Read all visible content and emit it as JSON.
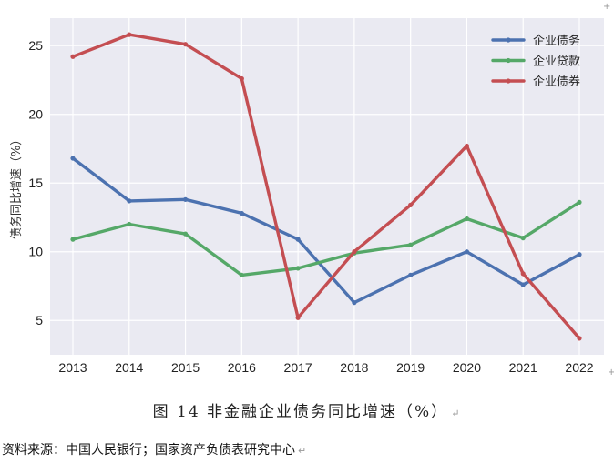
{
  "chart_data": {
    "type": "line",
    "categories": [
      "2013",
      "2014",
      "2015",
      "2016",
      "2017",
      "2018",
      "2019",
      "2020",
      "2021",
      "2022"
    ],
    "series": [
      {
        "name": "企业债务",
        "color": "#4c72b0",
        "values": [
          16.8,
          13.7,
          13.8,
          12.8,
          10.9,
          6.3,
          8.3,
          10.0,
          7.6,
          9.8
        ]
      },
      {
        "name": "企业贷款",
        "color": "#55a868",
        "values": [
          10.9,
          12.0,
          11.3,
          8.3,
          8.8,
          9.9,
          10.5,
          12.4,
          11.0,
          13.6
        ]
      },
      {
        "name": "企业债券",
        "color": "#c44e52",
        "values": [
          24.2,
          25.8,
          25.1,
          22.6,
          5.2,
          10.0,
          13.4,
          17.7,
          8.4,
          3.7
        ]
      }
    ],
    "yticks": [
      "5",
      "10",
      "15",
      "20",
      "25"
    ],
    "ylim": [
      2.5,
      27
    ],
    "ylabel": "债务同比增速（%）",
    "xlabel": "",
    "grid": true,
    "legend": "top-right"
  },
  "caption": "图 14  非金融企业债务同比增速（%）",
  "source": "资料来源：中国人民银行；国家资产负债表研究中心",
  "marks": {
    "paragraph": "↵",
    "cross": "+"
  }
}
